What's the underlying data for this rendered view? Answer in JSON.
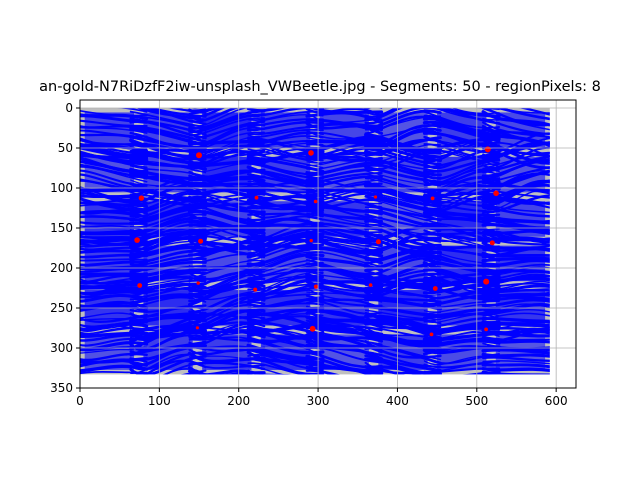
{
  "chart_data": {
    "type": "image-plot",
    "title": "an-gold-N7RiDzfF2iw-unsplash_VWBeetle.jpg - Segments: 50 - regionPixels: 8",
    "xlabel": "",
    "ylabel": "",
    "xlim": [
      0,
      625
    ],
    "ylim": [
      350,
      -10
    ],
    "y_inverted": true,
    "x_ticks": [
      0,
      100,
      200,
      300,
      400,
      500,
      600
    ],
    "y_ticks": [
      0,
      50,
      100,
      150,
      200,
      250,
      300,
      350
    ],
    "image_extent": {
      "x": [
        0,
        592
      ],
      "y": [
        0,
        333
      ]
    },
    "grid": true,
    "colors": {
      "background": "#bfbfbf",
      "segment_lines": "#0000ff",
      "region_markers": "#ff0000",
      "grid": "#b0b0b0"
    }
  }
}
